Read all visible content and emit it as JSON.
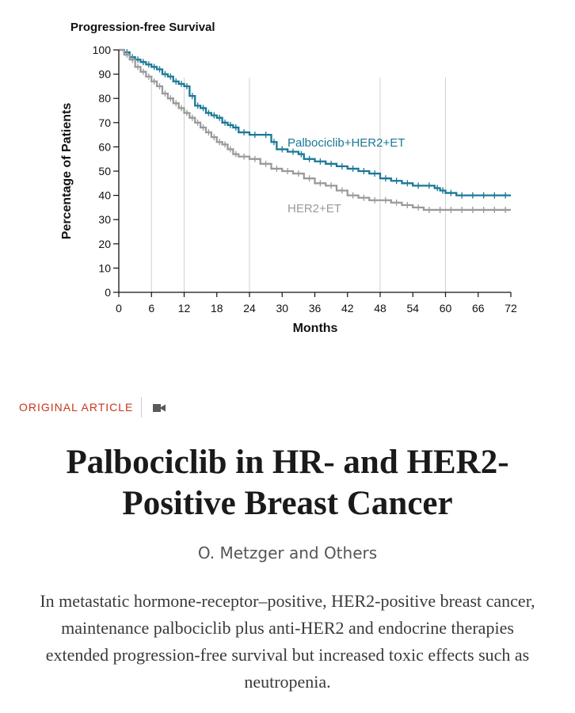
{
  "chart_data": {
    "type": "line",
    "title": "Progression-free Survival",
    "xlabel": "Months",
    "ylabel": "Percentage of Patients",
    "xlim": [
      0,
      72
    ],
    "ylim": [
      0,
      100
    ],
    "x_ticks": [
      0,
      6,
      12,
      18,
      24,
      30,
      36,
      42,
      48,
      54,
      60,
      66,
      72
    ],
    "y_ticks": [
      0,
      10,
      20,
      30,
      40,
      50,
      60,
      70,
      80,
      90,
      100
    ],
    "reference_lines_x": [
      6,
      12,
      24,
      48,
      60
    ],
    "series": [
      {
        "name": "Palbociclib+HER2+ET",
        "color": "#1a7896",
        "x": [
          0,
          1,
          2,
          3,
          4,
          5,
          6,
          7,
          8,
          9,
          10,
          11,
          12,
          13,
          14,
          15,
          16,
          17,
          18,
          19,
          20,
          21,
          22,
          24,
          26,
          28,
          29,
          31,
          33,
          34,
          36,
          38,
          40,
          42,
          44,
          46,
          48,
          50,
          52,
          54,
          56,
          58,
          59,
          60,
          62,
          64,
          66,
          68,
          70,
          72
        ],
        "y": [
          100,
          99,
          97,
          96,
          95,
          94,
          93,
          92,
          90,
          89,
          87,
          86,
          85,
          81,
          77,
          76,
          74,
          73,
          72,
          70,
          69,
          68,
          66,
          65,
          65,
          62,
          59,
          58,
          57,
          55,
          54,
          53,
          52,
          51,
          50,
          49,
          47,
          46,
          45,
          44,
          44,
          43,
          42,
          41,
          40,
          40,
          40,
          40,
          40,
          40
        ]
      },
      {
        "name": "HER2+ET",
        "color": "#9a9a9a",
        "x": [
          0,
          1,
          2,
          3,
          4,
          5,
          6,
          7,
          8,
          9,
          10,
          11,
          12,
          13,
          14,
          15,
          16,
          17,
          18,
          19,
          20,
          21,
          22,
          24,
          26,
          28,
          30,
          32,
          34,
          36,
          38,
          40,
          42,
          44,
          46,
          48,
          50,
          52,
          54,
          56,
          58,
          60,
          62,
          64,
          66,
          68,
          70,
          72
        ],
        "y": [
          100,
          98,
          96,
          93,
          91,
          89,
          87,
          85,
          82,
          80,
          78,
          76,
          74,
          72,
          70,
          68,
          66,
          64,
          62,
          61,
          59,
          57,
          56,
          55,
          53,
          51,
          50,
          49,
          47,
          45,
          44,
          42,
          40,
          39,
          38,
          38,
          37,
          36,
          35,
          34,
          34,
          34,
          34,
          34,
          34,
          34,
          34,
          34
        ]
      }
    ]
  },
  "section_label": "ORIGINAL ARTICLE",
  "icons": {
    "video": "video-camera-icon"
  },
  "title": "Palbociclib in HR- and HER2-Positive Breast Cancer",
  "authors": "O. Metzger and Others",
  "summary": "In metastatic hormone-receptor–positive, HER2-positive breast cancer, maintenance palbociclib plus anti-HER2 and endocrine therapies extended progression-free survival but increased toxic effects such as neutropenia."
}
